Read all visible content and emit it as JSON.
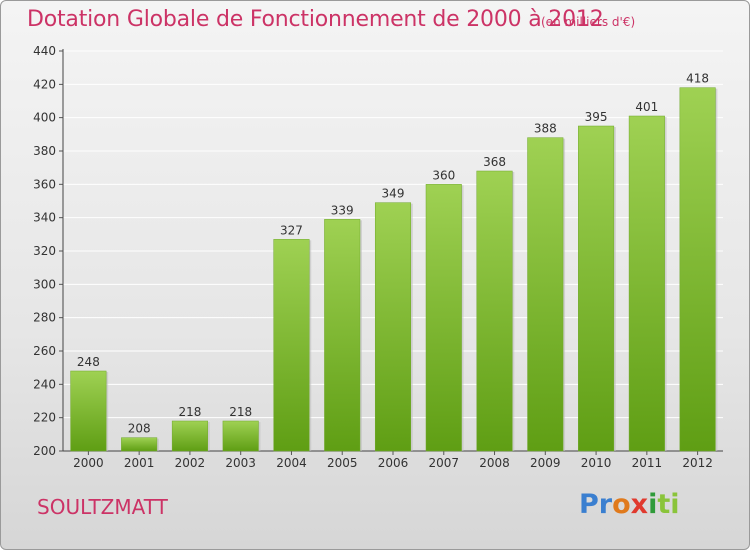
{
  "header": {
    "title": "Dotation Globale de Fonctionnement de 2000 à 2012",
    "unit": "(en milliers d'€)"
  },
  "footer": {
    "commune": "SOULTZMATT",
    "logo": [
      "Pr",
      "o",
      "x",
      "i",
      "ti"
    ]
  },
  "colors": {
    "title": "#cc3366",
    "bar_top": "#9fd153",
    "bar_bottom": "#5f9e14",
    "grid": "#ffffff"
  },
  "chart_data": {
    "type": "bar",
    "categories": [
      "2000",
      "2001",
      "2002",
      "2003",
      "2004",
      "2005",
      "2006",
      "2007",
      "2008",
      "2009",
      "2010",
      "2011",
      "2012"
    ],
    "values": [
      248,
      208,
      218,
      218,
      327,
      339,
      349,
      360,
      368,
      388,
      395,
      401,
      418
    ],
    "data_labels": [
      "248",
      "208",
      "218",
      "218",
      "327",
      "339",
      "349",
      "360",
      "368",
      "388",
      "395",
      "401",
      "418"
    ],
    "yticks": [
      "200",
      "220",
      "240",
      "260",
      "280",
      "300",
      "320",
      "340",
      "360",
      "380",
      "400",
      "420",
      "440"
    ],
    "title": "Dotation Globale de Fonctionnement de 2000 à 2012",
    "xlabel": "",
    "ylabel": "",
    "ylim": [
      200,
      440
    ],
    "grid": true,
    "legend": "none"
  }
}
